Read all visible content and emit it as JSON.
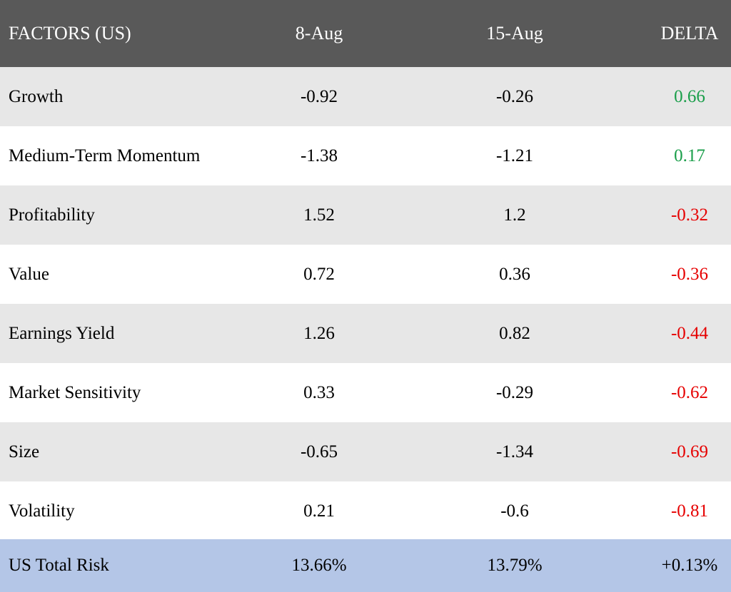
{
  "colors": {
    "header_bg": "#595959",
    "row_shade": "#e7e7e7",
    "total_bg": "#b4c6e7",
    "positive": "#1a9e4a",
    "negative": "#e60000"
  },
  "header": {
    "factor": "FACTORS (US)",
    "col1": "8-Aug",
    "col2": "15-Aug",
    "col3": "DELTA"
  },
  "rows": [
    {
      "factor": "Growth",
      "aug8": "-0.92",
      "aug15": "-0.26",
      "delta": "0.66",
      "sign": "pos"
    },
    {
      "factor": "Medium-Term Momentum",
      "aug8": "-1.38",
      "aug15": "-1.21",
      "delta": "0.17",
      "sign": "pos"
    },
    {
      "factor": "Profitability",
      "aug8": "1.52",
      "aug15": "1.2",
      "delta": "-0.32",
      "sign": "neg"
    },
    {
      "factor": "Value",
      "aug8": "0.72",
      "aug15": "0.36",
      "delta": "-0.36",
      "sign": "neg"
    },
    {
      "factor": "Earnings Yield",
      "aug8": "1.26",
      "aug15": "0.82",
      "delta": "-0.44",
      "sign": "neg"
    },
    {
      "factor": "Market Sensitivity",
      "aug8": "0.33",
      "aug15": "-0.29",
      "delta": "-0.62",
      "sign": "neg"
    },
    {
      "factor": "Size",
      "aug8": "-0.65",
      "aug15": "-1.34",
      "delta": "-0.69",
      "sign": "neg"
    },
    {
      "factor": "Volatility",
      "aug8": "0.21",
      "aug15": "-0.6",
      "delta": "-0.81",
      "sign": "neg"
    }
  ],
  "total": {
    "factor": "US Total Risk",
    "aug8": "13.66%",
    "aug15": "13.79%",
    "delta": "+0.13%"
  },
  "chart_data": {
    "type": "table",
    "columns": [
      "FACTORS (US)",
      "8-Aug",
      "15-Aug",
      "DELTA"
    ],
    "rows": [
      [
        "Growth",
        -0.92,
        -0.26,
        0.66
      ],
      [
        "Medium-Term Momentum",
        -1.38,
        -1.21,
        0.17
      ],
      [
        "Profitability",
        1.52,
        1.2,
        -0.32
      ],
      [
        "Value",
        0.72,
        0.36,
        -0.36
      ],
      [
        "Earnings Yield",
        1.26,
        0.82,
        -0.44
      ],
      [
        "Market Sensitivity",
        0.33,
        -0.29,
        -0.62
      ],
      [
        "Size",
        -0.65,
        -1.34,
        -0.69
      ],
      [
        "Volatility",
        0.21,
        -0.6,
        -0.81
      ],
      [
        "US Total Risk",
        "13.66%",
        "13.79%",
        "+0.13%"
      ]
    ]
  }
}
